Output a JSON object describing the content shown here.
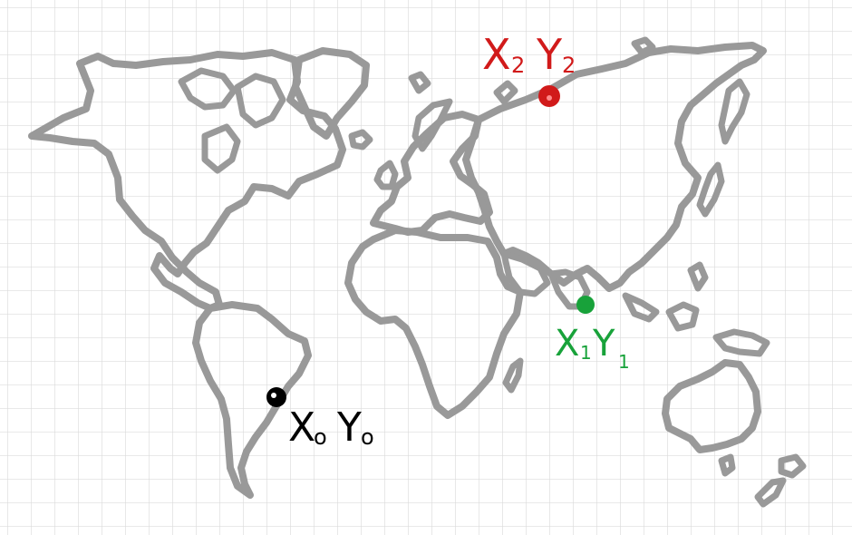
{
  "colors": {
    "background": "#ffffff",
    "grid": "#dcdcdc",
    "land_outline": "#999999",
    "point_origin": "#000000",
    "point_1": "#18a23a",
    "point_2": "#d11a1a"
  },
  "points": [
    {
      "id": "p0",
      "label_x": "X",
      "sub_x": "o",
      "label_y": "Y",
      "sub_y": "o",
      "color_key": "point_origin"
    },
    {
      "id": "p1",
      "label_x": "X",
      "sub_x": "1",
      "label_y": "Y",
      "sub_y": "1",
      "color_key": "point_1"
    },
    {
      "id": "p2",
      "label_x": "X",
      "sub_x": "2",
      "label_y": "Y",
      "sub_y": "2",
      "color_key": "point_2"
    }
  ]
}
